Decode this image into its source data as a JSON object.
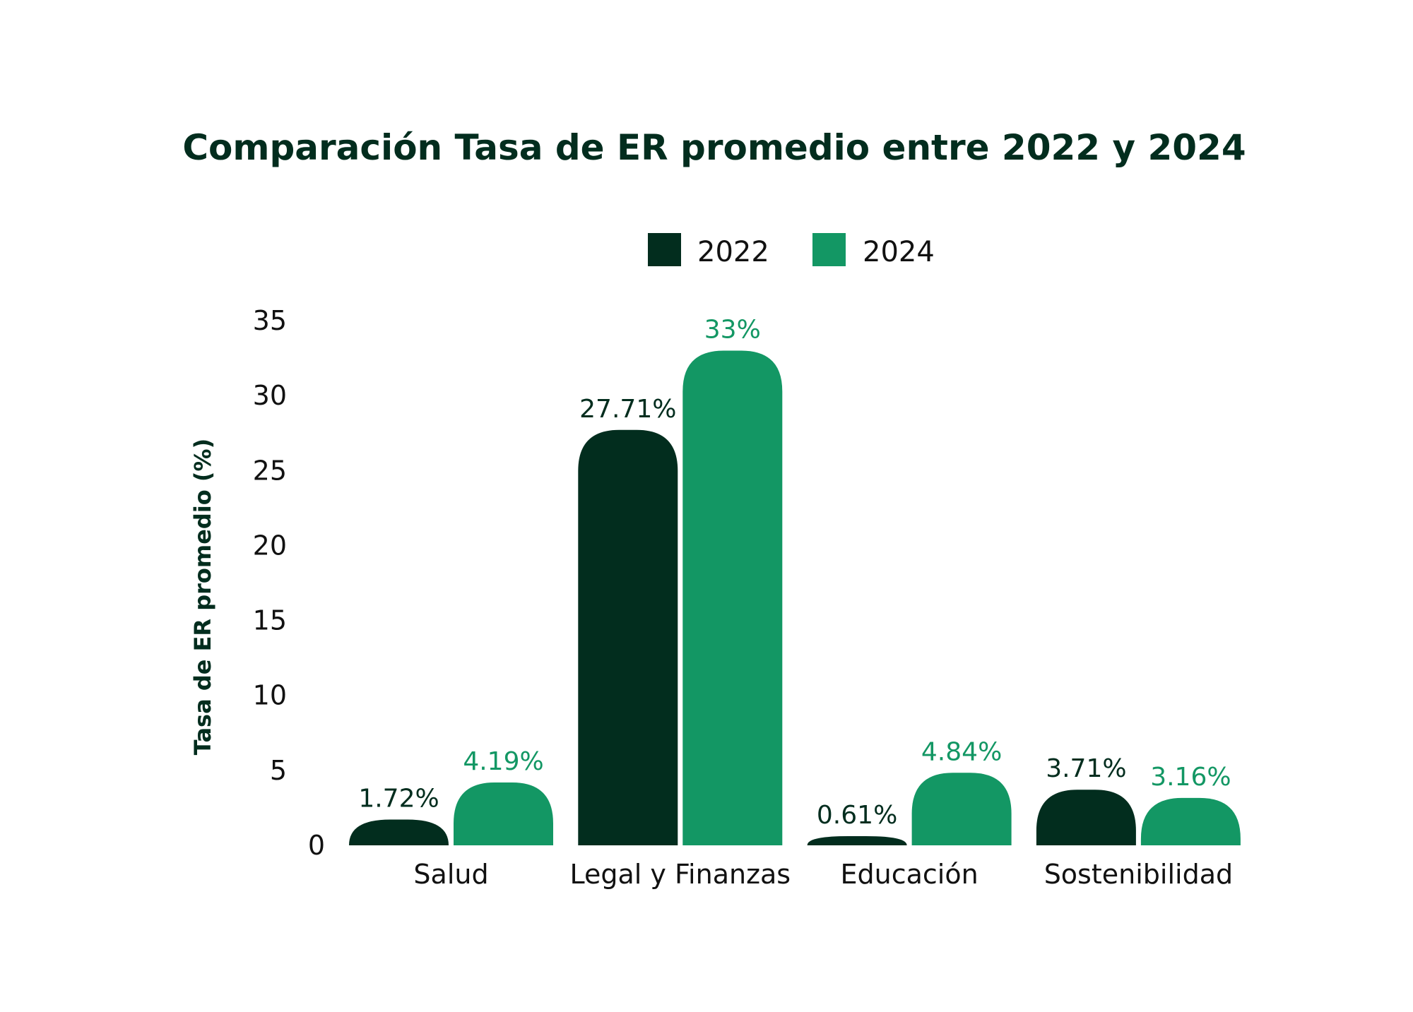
{
  "chart_data": {
    "type": "bar",
    "title": "Comparación Tasa de ER promedio entre 2022 y 2024",
    "xlabel": "",
    "ylabel": "Tasa de ER promedio (%)",
    "ylim": [
      0,
      35
    ],
    "yticks": [
      "0",
      "5",
      "10",
      "15",
      "20",
      "25",
      "30",
      "35"
    ],
    "grid": false,
    "legend_position": "top",
    "categories": [
      "Salud",
      "Legal y Finanzas",
      "Educación",
      "Sostenibilidad"
    ],
    "series": [
      {
        "name": "2022",
        "color": "#022d1e",
        "values": [
          1.72,
          27.71,
          0.61,
          3.71
        ],
        "labels": [
          "1.72%",
          "27.71%",
          "0.61%",
          "3.71%"
        ]
      },
      {
        "name": "2024",
        "color": "#139764",
        "values": [
          4.19,
          33,
          4.84,
          3.16
        ],
        "labels": [
          "4.19%",
          "33%",
          "4.84%",
          "3.16%"
        ]
      }
    ]
  }
}
